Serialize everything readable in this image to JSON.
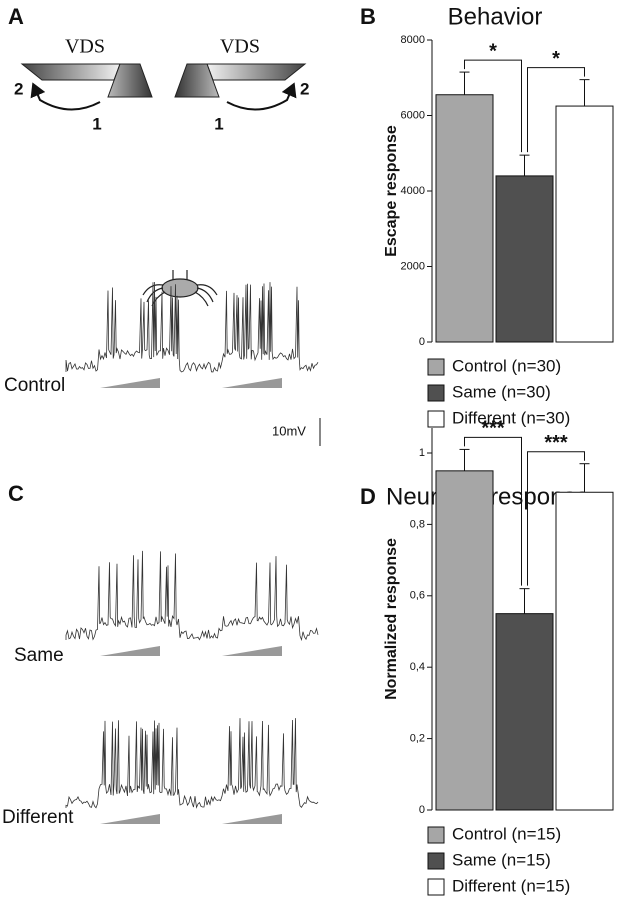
{
  "panels": {
    "A": {
      "letter": "A",
      "labels": [
        "VDS",
        "VDS",
        "2",
        "1",
        "1",
        "2"
      ]
    },
    "C": {
      "letter": "C",
      "traces": [
        "Control",
        "Same",
        "Different"
      ],
      "scale": "10mV"
    }
  },
  "chart_data": [
    {
      "type": "bar",
      "panel": "B",
      "title": "Behavior",
      "y_label": "Escape response",
      "series": [
        {
          "name": "Control (n=30)",
          "color": "#a6a6a6",
          "values": [
            6550
          ],
          "errors": [
            600
          ]
        },
        {
          "name": "Same (n=30)",
          "color": "#505050",
          "values": [
            4400
          ],
          "errors": [
            550
          ]
        },
        {
          "name": "Different (n=30)",
          "color": "#ffffff",
          "values": [
            6250
          ],
          "errors": [
            700
          ]
        }
      ],
      "annotations": [
        {
          "text": "*"
        },
        {
          "text": "*"
        }
      ],
      "ylim": [
        0,
        8000
      ],
      "yticks": [
        0,
        2000,
        4000,
        6000,
        8000
      ]
    },
    {
      "type": "bar",
      "panel": "D",
      "title": "Neuronal response",
      "y_label": "Normalized response",
      "series": [
        {
          "name": "Control (n=15)",
          "color": "#a6a6a6",
          "values": [
            0.95
          ],
          "errors": [
            0.06
          ]
        },
        {
          "name": "Same (n=15)",
          "color": "#505050",
          "values": [
            0.55
          ],
          "errors": [
            0.07
          ]
        },
        {
          "name": "Different (n=15)",
          "color": "#ffffff",
          "values": [
            0.89
          ],
          "errors": [
            0.08
          ]
        }
      ],
      "annotations": [
        {
          "text": "***"
        },
        {
          "text": "***"
        }
      ],
      "ylim": [
        0,
        1.07
      ],
      "yticks": [
        0,
        {
          "value": 0.2,
          "label": "0,2"
        },
        {
          "value": 0.4,
          "label": "0,4"
        },
        {
          "value": 0.6,
          "label": "0,6"
        },
        {
          "value": 0.8,
          "label": "0,8"
        },
        1
      ]
    }
  ]
}
